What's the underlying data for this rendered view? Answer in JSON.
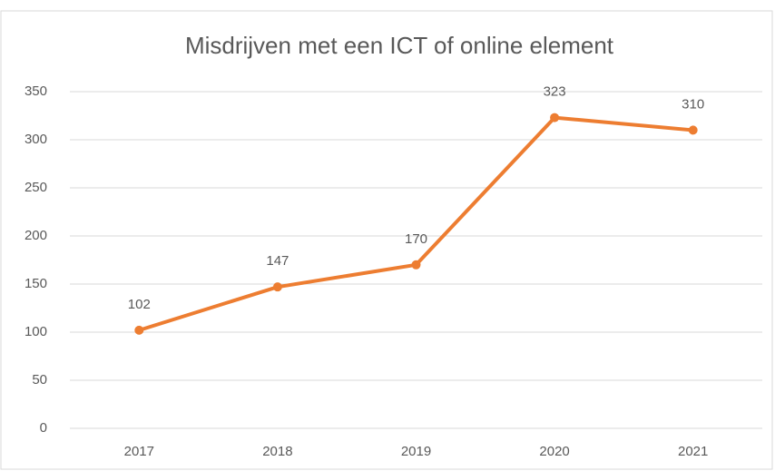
{
  "chart_data": {
    "type": "line",
    "title": "Misdrijven met een ICT of online element",
    "categories": [
      "2017",
      "2018",
      "2019",
      "2020",
      "2021"
    ],
    "values": [
      102,
      147,
      170,
      323,
      310
    ],
    "color": "#ed7d31",
    "ylim": [
      0,
      350
    ],
    "yticks": [
      0,
      50,
      100,
      150,
      200,
      250,
      300,
      350
    ],
    "grid": true
  }
}
